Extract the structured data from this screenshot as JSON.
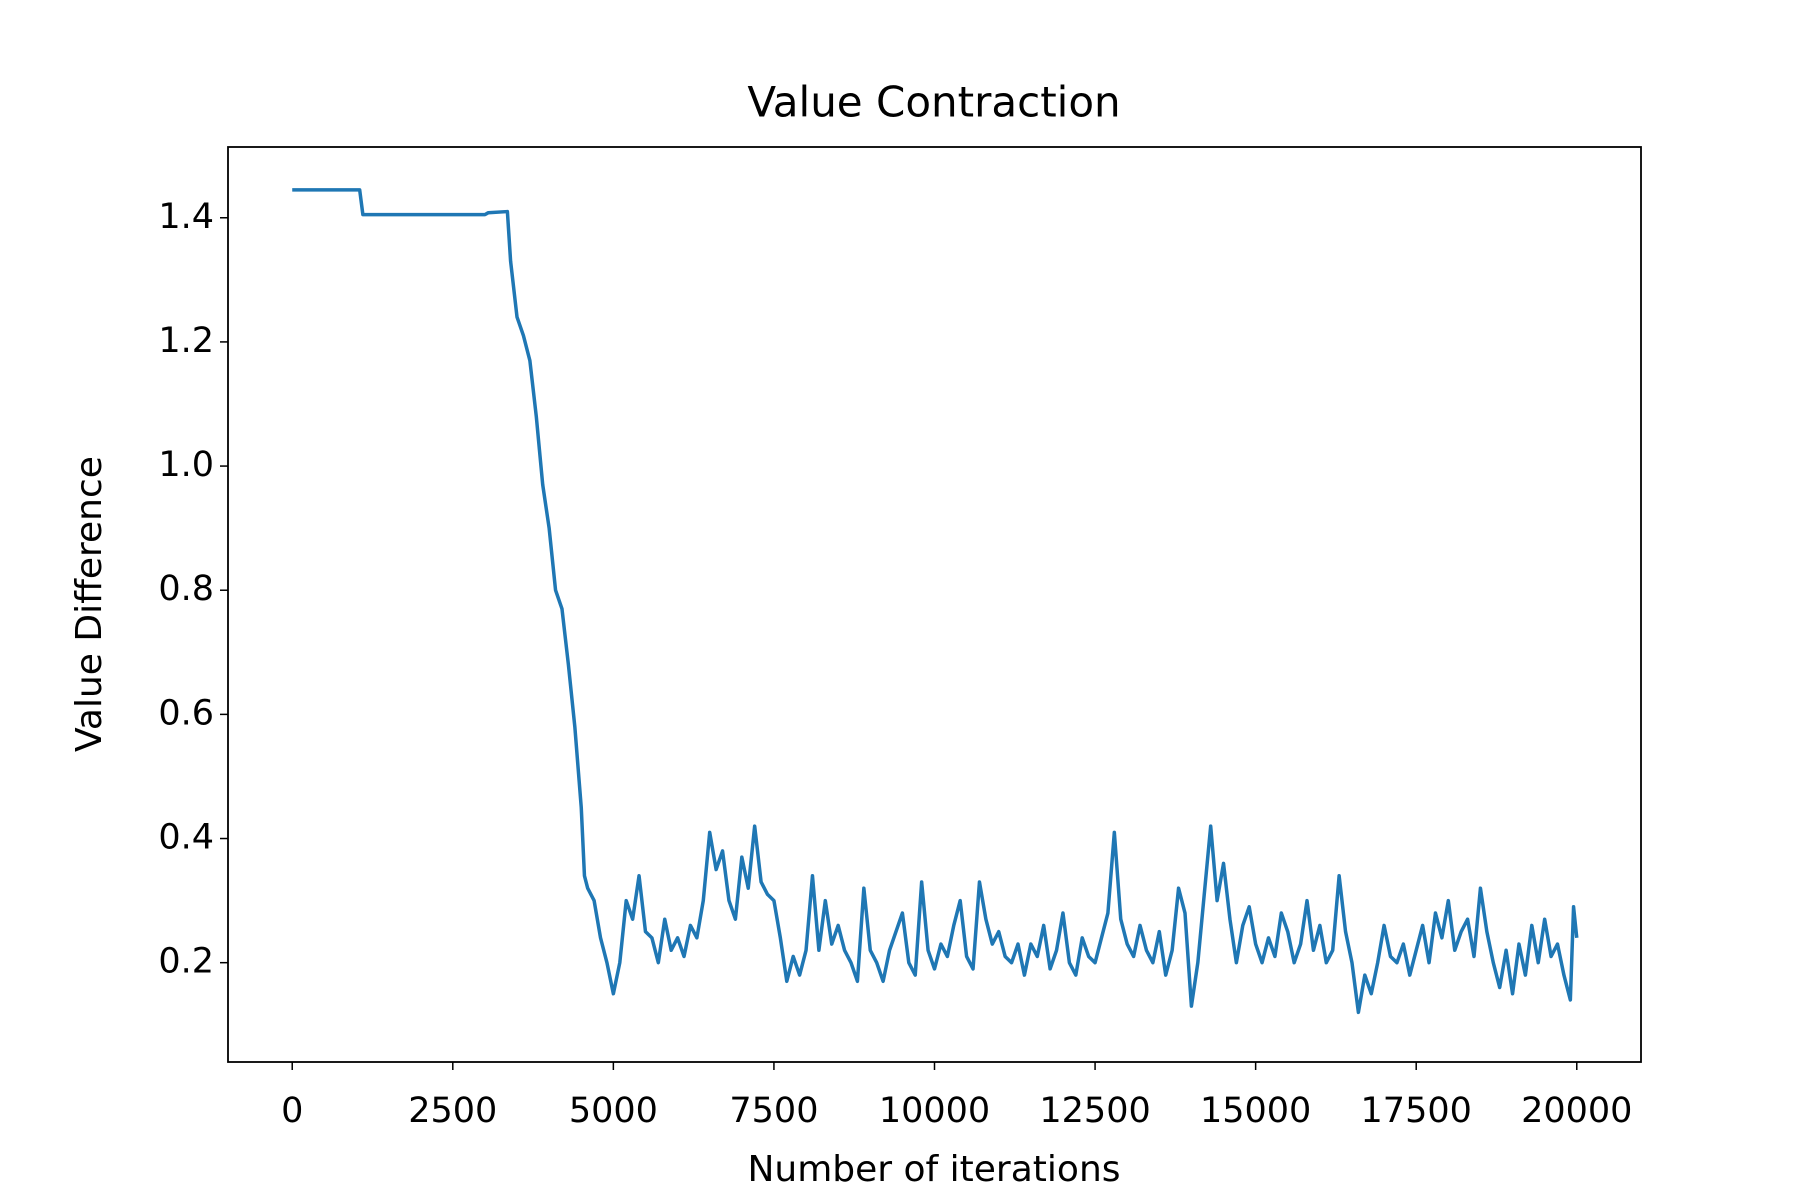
{
  "chart_data": {
    "type": "line",
    "title": "Value Contraction",
    "x_label": "Number of iterations",
    "y_label": "Value Difference",
    "xlim": [
      -1000,
      21000
    ],
    "ylim": [
      0.04,
      1.514
    ],
    "xticks": [
      0,
      2500,
      5000,
      7500,
      10000,
      12500,
      15000,
      17500,
      20000
    ],
    "yticks": [
      0.2,
      0.4,
      0.6,
      0.8,
      {
        "value": 1,
        "label": "1.0"
      },
      1.2,
      1.4
    ],
    "series": [
      {
        "color": "#1f77b4",
        "x": [
          0,
          1050,
          1100,
          3000,
          3050,
          3350,
          3400,
          3500,
          3600,
          3700,
          3800,
          3900,
          4000,
          4100,
          4200,
          4300,
          4400,
          4500,
          4550,
          4600,
          4700,
          4800,
          4900,
          5000,
          5100,
          5200,
          5300,
          5400,
          5500,
          5600,
          5700,
          5800,
          5900,
          6000,
          6100,
          6200,
          6300,
          6400,
          6500,
          6600,
          6700,
          6800,
          6900,
          7000,
          7100,
          7200,
          7300,
          7400,
          7500,
          7600,
          7700,
          7800,
          7900,
          8000,
          8100,
          8200,
          8300,
          8400,
          8500,
          8600,
          8700,
          8800,
          8900,
          9000,
          9100,
          9200,
          9300,
          9400,
          9500,
          9600,
          9700,
          9800,
          9900,
          10000,
          10100,
          10200,
          10300,
          10400,
          10500,
          10600,
          10700,
          10800,
          10900,
          11000,
          11100,
          11200,
          11300,
          11400,
          11500,
          11600,
          11700,
          11800,
          11900,
          12000,
          12100,
          12200,
          12300,
          12400,
          12500,
          12600,
          12700,
          12800,
          12900,
          13000,
          13100,
          13200,
          13300,
          13400,
          13500,
          13600,
          13700,
          13800,
          13900,
          14000,
          14100,
          14200,
          14300,
          14400,
          14500,
          14600,
          14700,
          14800,
          14900,
          15000,
          15100,
          15200,
          15300,
          15400,
          15500,
          15600,
          15700,
          15800,
          15900,
          16000,
          16100,
          16200,
          16300,
          16400,
          16500,
          16600,
          16700,
          16800,
          16900,
          17000,
          17100,
          17200,
          17300,
          17400,
          17500,
          17600,
          17700,
          17800,
          17900,
          18000,
          18100,
          18200,
          18300,
          18400,
          18500,
          18600,
          18700,
          18800,
          18900,
          19000,
          19100,
          19200,
          19300,
          19400,
          19500,
          19600,
          19700,
          19800,
          19900,
          19950,
          20000
        ],
        "values": [
          1.445,
          1.445,
          1.405,
          1.405,
          1.408,
          1.41,
          1.33,
          1.24,
          1.21,
          1.17,
          1.08,
          0.97,
          0.9,
          0.8,
          0.77,
          0.68,
          0.58,
          0.45,
          0.34,
          0.32,
          0.3,
          0.24,
          0.2,
          0.15,
          0.2,
          0.3,
          0.27,
          0.34,
          0.25,
          0.24,
          0.2,
          0.27,
          0.22,
          0.24,
          0.21,
          0.26,
          0.24,
          0.3,
          0.41,
          0.35,
          0.38,
          0.3,
          0.27,
          0.37,
          0.32,
          0.42,
          0.33,
          0.31,
          0.3,
          0.24,
          0.17,
          0.21,
          0.18,
          0.22,
          0.34,
          0.22,
          0.3,
          0.23,
          0.26,
          0.22,
          0.2,
          0.17,
          0.32,
          0.22,
          0.2,
          0.17,
          0.22,
          0.25,
          0.28,
          0.2,
          0.18,
          0.33,
          0.22,
          0.19,
          0.23,
          0.21,
          0.26,
          0.3,
          0.21,
          0.19,
          0.33,
          0.27,
          0.23,
          0.25,
          0.21,
          0.2,
          0.23,
          0.18,
          0.23,
          0.21,
          0.26,
          0.19,
          0.22,
          0.28,
          0.2,
          0.18,
          0.24,
          0.21,
          0.2,
          0.24,
          0.28,
          0.41,
          0.27,
          0.23,
          0.21,
          0.26,
          0.22,
          0.2,
          0.25,
          0.18,
          0.22,
          0.32,
          0.28,
          0.13,
          0.2,
          0.31,
          0.42,
          0.3,
          0.36,
          0.27,
          0.2,
          0.26,
          0.29,
          0.23,
          0.2,
          0.24,
          0.21,
          0.28,
          0.25,
          0.2,
          0.23,
          0.3,
          0.22,
          0.26,
          0.2,
          0.22,
          0.34,
          0.25,
          0.2,
          0.12,
          0.18,
          0.15,
          0.2,
          0.26,
          0.21,
          0.2,
          0.23,
          0.18,
          0.22,
          0.26,
          0.2,
          0.28,
          0.24,
          0.3,
          0.22,
          0.25,
          0.27,
          0.21,
          0.32,
          0.25,
          0.2,
          0.16,
          0.22,
          0.15,
          0.23,
          0.18,
          0.26,
          0.2,
          0.27,
          0.21,
          0.23,
          0.18,
          0.14,
          0.29,
          0.24
        ]
      }
    ]
  }
}
